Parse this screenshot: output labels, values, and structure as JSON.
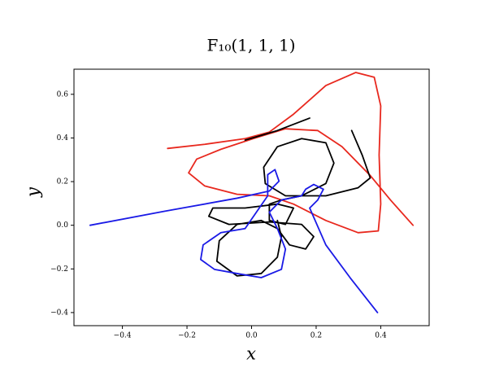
{
  "chart_data": {
    "type": "line",
    "title": "F₁₀(1, 1, 1)",
    "x_label": "x",
    "y_label": "y",
    "xlim": [
      -0.55,
      0.55
    ],
    "ylim": [
      -0.46,
      0.715
    ],
    "xticks": [
      {
        "value": -0.4,
        "label": "−0.4"
      },
      {
        "value": -0.2,
        "label": "−0.2"
      },
      {
        "value": 0,
        "label": "0.0"
      },
      0.2,
      0.4
    ],
    "yticks": [
      {
        "value": -0.4,
        "label": "−0.4"
      },
      {
        "value": -0.2,
        "label": "−0.2"
      },
      {
        "value": 0,
        "label": "0.0"
      },
      0.2,
      0.4,
      0.6
    ],
    "grid": false,
    "series": [
      {
        "color": "#e8281e",
        "x": [
          -0.26,
          -0.145,
          -0.02,
          0.055,
          0.13,
          0.23,
          0.3225,
          0.38,
          0.4,
          0.395,
          0.4,
          0.3925,
          0.33,
          0.23,
          0.13,
          0.055,
          -0.045,
          -0.145,
          -0.195,
          -0.17,
          -0.095,
          0.005,
          0.105,
          0.205,
          0.28,
          0.3675,
          0.43,
          0.5
        ],
        "values": [
          0.352,
          0.371,
          0.397,
          0.427,
          0.509,
          0.64,
          0.7,
          0.678,
          0.547,
          0.322,
          0.097,
          -0.026,
          -0.034,
          0.022,
          0.097,
          0.135,
          0.142,
          0.18,
          0.24,
          0.303,
          0.348,
          0.397,
          0.442,
          0.434,
          0.36,
          0.228,
          0.116,
          0.0
        ]
      },
      {
        "color": "#000000",
        "x": [
          -0.02,
          0.08,
          0.18
        ],
        "values": [
          0.39,
          0.434,
          0.491
        ]
      },
      {
        "color": "#000000",
        "x": [
          0.31,
          0.3425,
          0.3675,
          0.33,
          0.23,
          0.105,
          0.0425,
          0.0375,
          0.08,
          0.155,
          0.23,
          0.255,
          0.23,
          0.155,
          0.0925,
          0.055,
          0.055,
          0.105,
          0.13,
          0.08,
          -0.02,
          -0.12,
          -0.1325,
          -0.07,
          0.055,
          0.155,
          0.1925,
          0.1675,
          0.1175,
          0.08,
          0.03,
          -0.045,
          -0.1,
          -0.1075,
          -0.045,
          0.03,
          0.08,
          0.0925,
          0.08
        ],
        "values": [
          0.434,
          0.322,
          0.217,
          0.172,
          0.135,
          0.135,
          0.191,
          0.266,
          0.36,
          0.397,
          0.378,
          0.285,
          0.191,
          0.135,
          0.116,
          0.097,
          0.022,
          0.004,
          0.079,
          0.097,
          0.079,
          0.079,
          0.041,
          0.004,
          0.015,
          0.004,
          -0.052,
          -0.109,
          -0.09,
          -0.015,
          0.022,
          0.004,
          -0.071,
          -0.165,
          -0.232,
          -0.221,
          -0.146,
          -0.052,
          0.022
        ]
      },
      {
        "color": "#1a1ae6",
        "x": [
          -0.5,
          -0.27,
          -0.045,
          0.055,
          0.085,
          0.0725,
          0.05,
          0.05,
          -0.02,
          -0.095,
          -0.15,
          -0.1575,
          -0.115,
          -0.045,
          0.03,
          0.0925,
          0.105,
          0.08,
          0.055,
          0.0925,
          0.155,
          0.1675,
          0.1925,
          0.2225,
          0.205,
          0.18,
          0.23,
          0.305,
          0.39
        ],
        "values": [
          0,
          0.064,
          0.124,
          0.157,
          0.202,
          0.255,
          0.232,
          0.135,
          -0.015,
          -0.034,
          -0.09,
          -0.157,
          -0.202,
          -0.221,
          -0.24,
          -0.202,
          -0.109,
          -0.015,
          0.06,
          0.116,
          0.135,
          0.165,
          0.187,
          0.165,
          0.116,
          0.079,
          -0.09,
          -0.24,
          -0.4
        ]
      }
    ]
  }
}
